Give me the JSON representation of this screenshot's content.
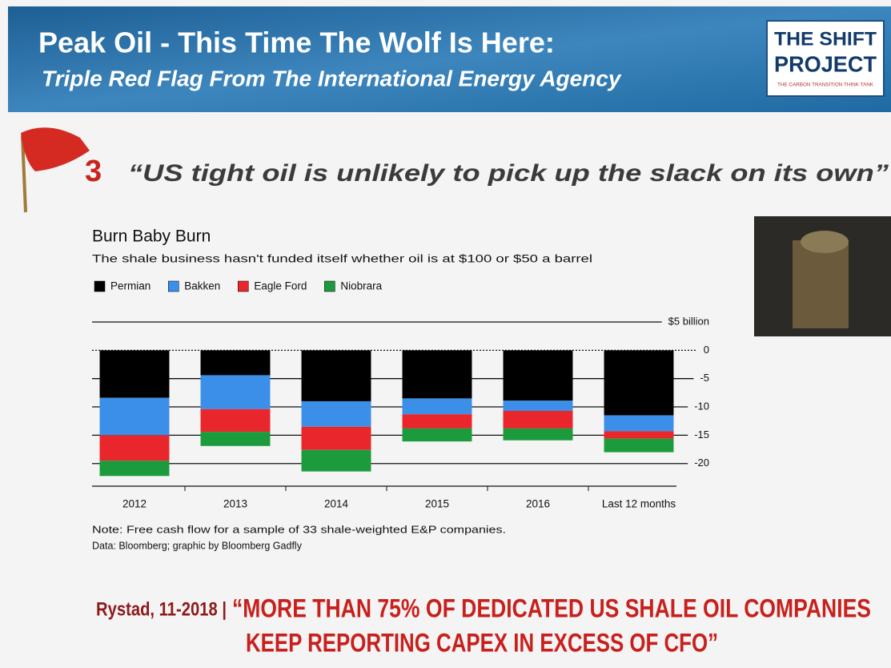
{
  "header": {
    "title": "Peak Oil - This Time The Wolf Is Here:",
    "subtitle": "Triple Red Flag From The International Energy Agency",
    "logo": [
      "THE SHIFT",
      "PROJECT",
      "THE CARBON TRANSITION THINK TANK"
    ]
  },
  "flag_number": "3",
  "quote": "“US tight oil is unlikely to pick up the slack on its own”",
  "chart_data": {
    "type": "bar",
    "stacked": true,
    "title": "Burn Baby Burn",
    "subtitle": "The shale business hasn't funded itself whether oil is at $100 or $50 a barrel",
    "categories": [
      "2012",
      "2013",
      "2014",
      "2015",
      "2016",
      "Last 12 months"
    ],
    "series": [
      {
        "name": "Permian",
        "color": "#000000",
        "values": [
          -8.4,
          -4.4,
          -9.0,
          -8.5,
          -8.9,
          -11.5
        ]
      },
      {
        "name": "Bakken",
        "color": "#3b8fe8",
        "values": [
          -6.6,
          -6.0,
          -4.5,
          -2.8,
          -1.8,
          -2.8
        ]
      },
      {
        "name": "Eagle Ford",
        "color": "#e8262b",
        "values": [
          -4.5,
          -4.0,
          -4.1,
          -2.5,
          -3.1,
          -1.3
        ]
      },
      {
        "name": "Niobrara",
        "color": "#1b9b3c",
        "values": [
          -2.7,
          -2.5,
          -3.8,
          -2.3,
          -2.1,
          -2.4
        ]
      }
    ],
    "ylim": [
      -24,
      5
    ],
    "yticks": [
      {
        "value": 5,
        "label": "$5 billion"
      },
      0,
      -5,
      -10,
      -15,
      -20
    ],
    "grid": true,
    "legend": "top-left",
    "notes": [
      "Note: Free cash flow for a sample of 33 shale-weighted E&P companies.",
      "Data: Bloomberg; graphic by Bloomberg Gadfly"
    ]
  },
  "footer": {
    "source": "Rystad, 11-2018 |",
    "quote_lines": [
      "“MORE THAN 75% OF DEDICATED US SHALE OIL COMPANIES",
      "KEEP REPORTING CAPEX IN EXCESS OF CFO”"
    ]
  }
}
